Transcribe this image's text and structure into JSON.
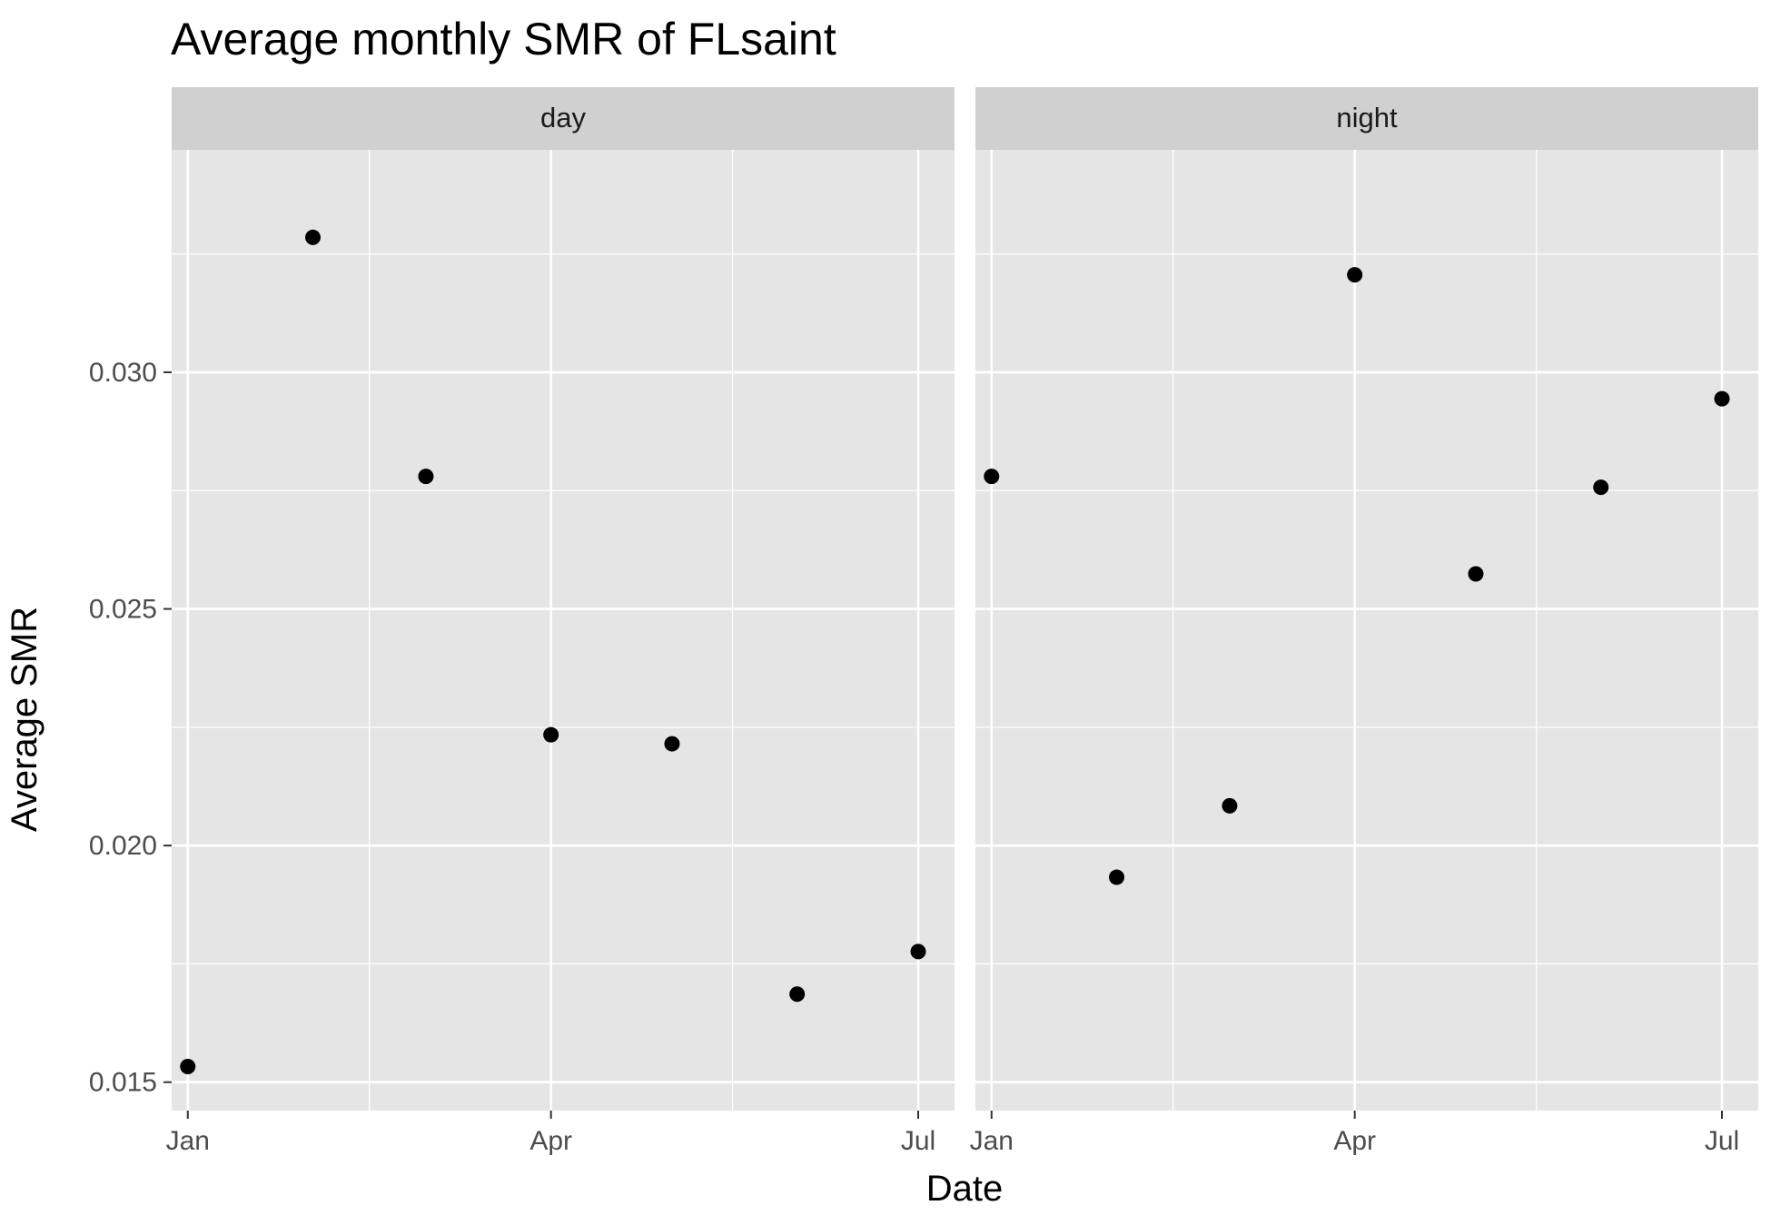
{
  "chart_data": {
    "type": "scatter",
    "title": "Average monthly SMR of FLsaint",
    "xlabel": "Date",
    "ylabel": "Average SMR",
    "xlim": [
      "2021-12-28",
      "2022-07-10"
    ],
    "ylim": [
      0.0144,
      0.0347
    ],
    "x_major_ticks": [
      {
        "label": "Jan",
        "date": "2022-01-01"
      },
      {
        "label": "Apr",
        "date": "2022-04-01"
      },
      {
        "label": "Jul",
        "date": "2022-07-01"
      }
    ],
    "x_minor_ticks": [
      "2022-02-15",
      "2022-05-16"
    ],
    "y_major_ticks": [
      {
        "label": "0.015",
        "value": 0.015
      },
      {
        "label": "0.020",
        "value": 0.02
      },
      {
        "label": "0.025",
        "value": 0.025
      },
      {
        "label": "0.030",
        "value": 0.03
      }
    ],
    "y_minor_ticks": [
      0.0175,
      0.0225,
      0.0275,
      0.0325
    ],
    "grid": true,
    "panels": [
      {
        "name": "day",
        "points": [
          {
            "x": "2022-01-01",
            "y": 0.01533
          },
          {
            "x": "2022-02-01",
            "y": 0.03285
          },
          {
            "x": "2022-03-01",
            "y": 0.0278
          },
          {
            "x": "2022-04-01",
            "y": 0.02234
          },
          {
            "x": "2022-05-01",
            "y": 0.02215
          },
          {
            "x": "2022-06-01",
            "y": 0.01686
          },
          {
            "x": "2022-07-01",
            "y": 0.01776
          }
        ]
      },
      {
        "name": "night",
        "points": [
          {
            "x": "2022-01-01",
            "y": 0.0278
          },
          {
            "x": "2022-02-01",
            "y": 0.01933
          },
          {
            "x": "2022-03-01",
            "y": 0.02084
          },
          {
            "x": "2022-04-01",
            "y": 0.03206
          },
          {
            "x": "2022-05-01",
            "y": 0.02574
          },
          {
            "x": "2022-06-01",
            "y": 0.02757
          },
          {
            "x": "2022-07-01",
            "y": 0.02944
          }
        ]
      }
    ],
    "colors": {
      "panel_background": "#e5e5e5",
      "strip_background": "#d0d0d0",
      "grid": "#ffffff",
      "points": "#000000",
      "tick_text": "#4d4d4d"
    }
  }
}
